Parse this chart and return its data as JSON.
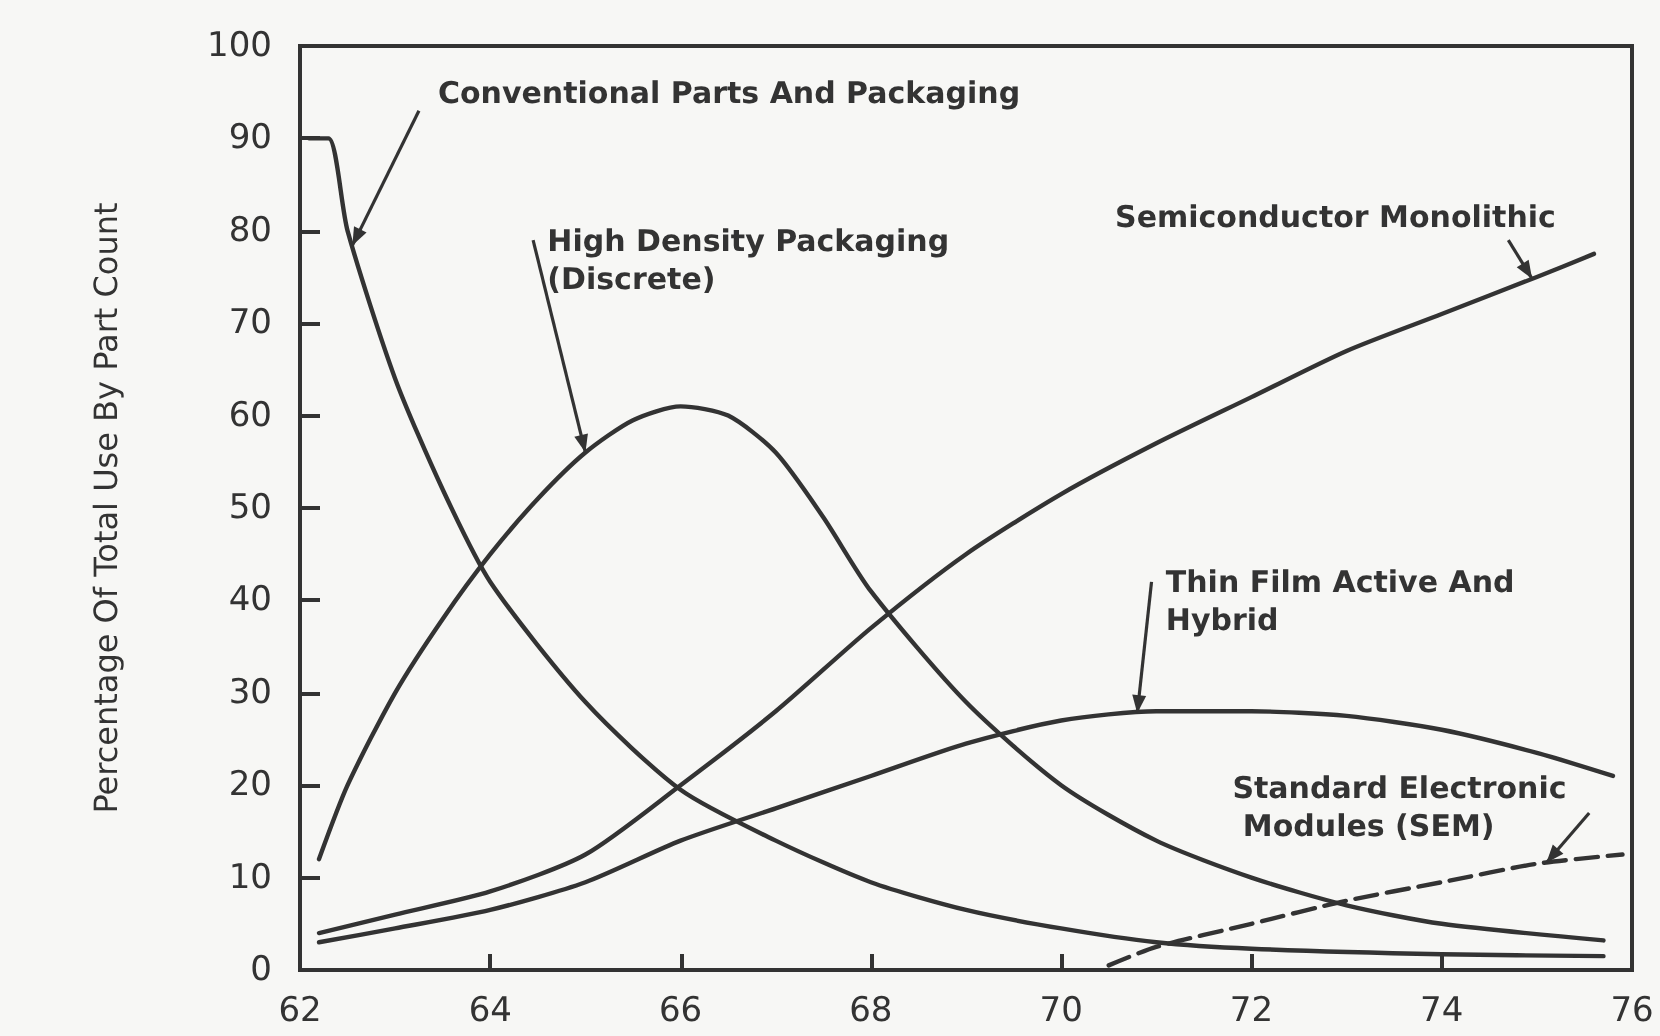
{
  "chart_data": {
    "type": "line",
    "ylabel": "Percentage Of Total Use By Part Count",
    "xlim": [
      62,
      76
    ],
    "xticks": [
      62,
      64,
      66,
      68,
      70,
      72,
      74,
      76
    ],
    "ylim": [
      0,
      100
    ],
    "yticks": [
      0,
      10,
      20,
      30,
      40,
      50,
      60,
      70,
      80,
      90,
      100
    ],
    "grid": false,
    "legend": false,
    "marker": "none",
    "series": [
      {
        "name": "Conventional Parts And Packaging",
        "color": "#333333",
        "x": [
          62.1,
          62.3,
          62.5,
          63,
          63.5,
          64,
          65,
          66,
          67,
          68,
          69,
          70,
          71,
          72,
          74,
          75.7
        ],
        "values": [
          90,
          90,
          80,
          64,
          52,
          42,
          29,
          19.5,
          14,
          9.5,
          6.5,
          4.5,
          3,
          2.3,
          1.7,
          1.5
        ]
      },
      {
        "name": "High Density Packaging (Discrete)",
        "color": "#333333",
        "x": [
          62.2,
          62.5,
          63,
          63.5,
          64,
          64.5,
          65,
          65.5,
          66,
          66.5,
          67,
          67.5,
          68,
          69,
          70,
          71,
          72,
          73,
          74,
          75.7
        ],
        "values": [
          12,
          20,
          30,
          38,
          45,
          51,
          56,
          59.5,
          61,
          60,
          56,
          49,
          41,
          29,
          20,
          14,
          10,
          7,
          5,
          3.2
        ]
      },
      {
        "name": "Semiconductor Monolithic",
        "color": "#333333",
        "x": [
          62.2,
          63,
          64,
          65,
          66,
          67,
          68,
          69,
          70,
          71,
          72,
          73,
          74,
          75,
          75.6
        ],
        "values": [
          4,
          6,
          8.5,
          12.5,
          20,
          28,
          37,
          45,
          51.5,
          57,
          62,
          67,
          71,
          75,
          77.5
        ]
      },
      {
        "name": "Thin Film Active And Hybrid",
        "color": "#333333",
        "x": [
          62.2,
          63,
          64,
          65,
          66,
          67,
          68,
          69,
          70,
          71,
          72,
          73,
          74,
          75,
          75.8
        ],
        "values": [
          3,
          4.5,
          6.5,
          9.5,
          14,
          17.5,
          21,
          24.5,
          27,
          28,
          28,
          27.5,
          26,
          23.5,
          21
        ]
      },
      {
        "name": "Standard Electronic Modules (SEM)",
        "color": "#333333",
        "line_style": "dashed",
        "x": [
          70.5,
          71,
          72,
          73,
          74,
          75,
          75.9
        ],
        "values": [
          0.5,
          2.5,
          5,
          7.5,
          9.5,
          11.5,
          12.5
        ]
      }
    ]
  }
}
